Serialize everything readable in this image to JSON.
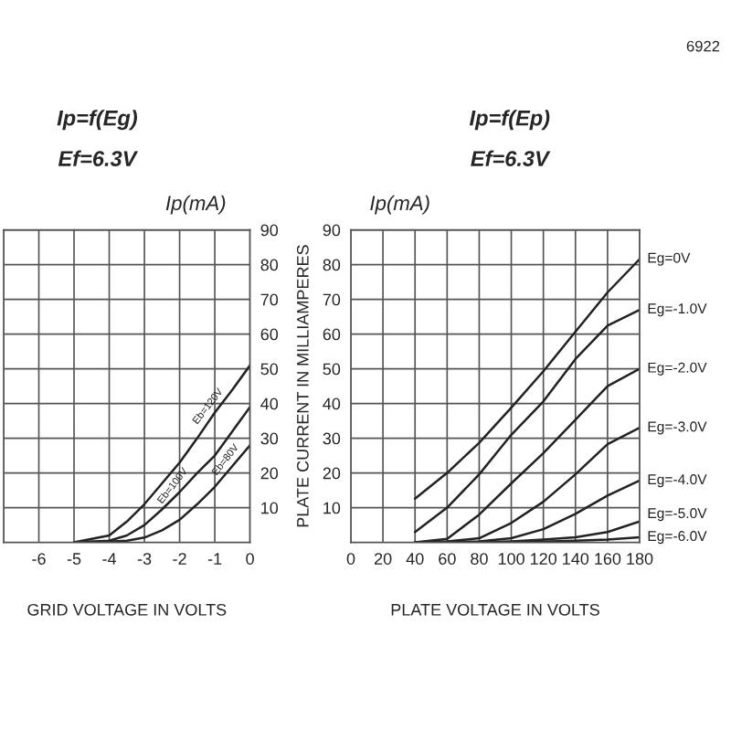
{
  "chart_data": [
    {
      "type": "line",
      "title": "Ip=f(Eg)",
      "subtitle": "Ef=6.3V",
      "ylabel": "Ip(mA)",
      "annotations": [
        "PLATE CURRENT IN MILLIAMPERES"
      ],
      "xlabel": "GRID VOLTAGE IN VOLTS",
      "xlim": [
        -7,
        0
      ],
      "xticks": [
        {
          "value": -7,
          "label": null
        },
        -6,
        -5,
        -4,
        -3,
        -2,
        -1,
        0
      ],
      "ylim": [
        0,
        90
      ],
      "yticks": [
        10,
        20,
        30,
        40,
        50,
        60,
        70,
        80,
        90
      ],
      "grid": true,
      "legend": false,
      "x": [
        -5,
        -4,
        -3.5,
        -3,
        -2.5,
        -2,
        -1.5,
        -1,
        -0.5,
        0
      ],
      "series": [
        {
          "name": "Eb=120V",
          "color": "#222222",
          "values": [
            0,
            2,
            6,
            11,
            17,
            23,
            30,
            37.4,
            44,
            51
          ]
        },
        {
          "name": "Eb=100V",
          "color": "#222222",
          "values": [
            0,
            0.5,
            2,
            5,
            9.5,
            14.5,
            20,
            25,
            32,
            39
          ]
        },
        {
          "name": "Eb=80V",
          "color": "#222222",
          "values": [
            0,
            0.2,
            0.5,
            1.4,
            3.5,
            6.5,
            11,
            16,
            22,
            28
          ]
        }
      ]
    },
    {
      "type": "line",
      "title": "Ip=f(Ep)",
      "subtitle": "Ef=6.3V",
      "ylabel": "Ip(mA)",
      "xlabel": "PLATE VOLTAGE IN VOLTS",
      "annotations": [
        "6922"
      ],
      "xlim": [
        0,
        180
      ],
      "xticks": [
        0,
        20,
        40,
        60,
        80,
        100,
        120,
        140,
        160,
        180
      ],
      "ylim": [
        0,
        90
      ],
      "yticks": [
        10,
        20,
        30,
        40,
        50,
        60,
        70,
        80,
        90
      ],
      "grid": true,
      "legend": false,
      "x": [
        40,
        60,
        80,
        100,
        120,
        140,
        160,
        180
      ],
      "series": [
        {
          "name": "Eg=0V",
          "color": "#222222",
          "values": [
            12.6,
            20,
            28.7,
            38.8,
            49.3,
            60.7,
            72,
            81.6
          ]
        },
        {
          "name": "Eg=-1.0V",
          "color": "#222222",
          "values": [
            3,
            10,
            19.6,
            31,
            40.6,
            52.8,
            62.4,
            67
          ]
        },
        {
          "name": "Eg=-2.0V",
          "color": "#222222",
          "values": [
            0,
            1,
            8,
            17,
            25.7,
            35.3,
            45,
            50
          ]
        },
        {
          "name": "Eg=-3.0V",
          "color": "#222222",
          "values": [
            0,
            0.3,
            1.2,
            5.6,
            11.7,
            19.6,
            28.3,
            33
          ]
        },
        {
          "name": "Eg=-4.0V",
          "color": "#222222",
          "values": [
            0,
            0,
            0.3,
            1.2,
            3.8,
            8.2,
            13.5,
            17.8
          ]
        },
        {
          "name": "Eg=-5.0V",
          "color": "#222222",
          "values": [
            0,
            0,
            0,
            0.3,
            0.8,
            1.5,
            3,
            6
          ]
        },
        {
          "name": "Eg=-6.0V",
          "color": "#222222",
          "values": [
            0,
            0,
            0,
            0,
            0.2,
            0.5,
            0.8,
            1.5
          ]
        }
      ]
    }
  ]
}
